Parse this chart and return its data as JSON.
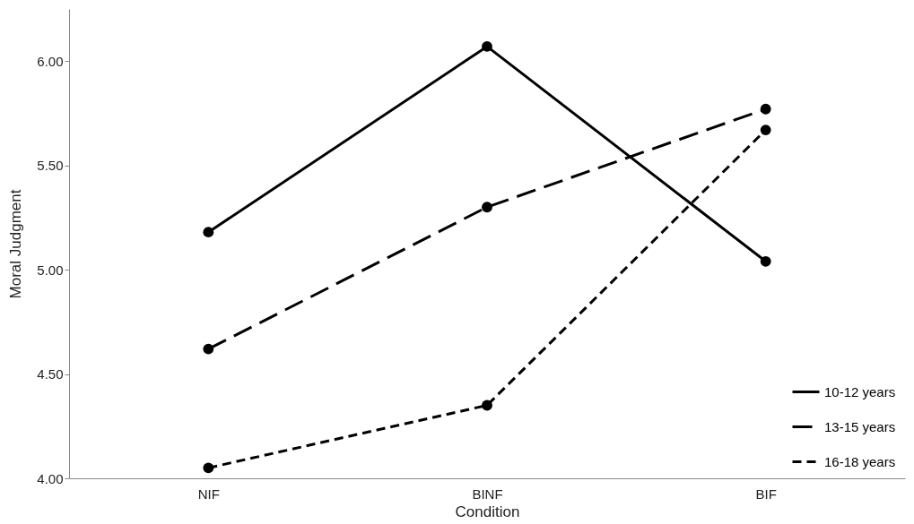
{
  "chart_data": {
    "type": "line",
    "xlabel": "Condition",
    "ylabel": "Moral Judgment",
    "categories": [
      "NIF",
      "BINF",
      "BIF"
    ],
    "series": [
      {
        "name": "10-12 years",
        "color": "#000000",
        "line_style": "solid",
        "values": [
          5.18,
          6.07,
          5.04
        ]
      },
      {
        "name": "13-15 years",
        "color": "#000000",
        "line_style": "dashed",
        "values": [
          4.62,
          5.3,
          5.77
        ]
      },
      {
        "name": "16-18 years",
        "color": "#000000",
        "line_style": "dotted",
        "values": [
          4.05,
          4.35,
          5.67
        ]
      }
    ],
    "ylim": [
      4,
      6.25
    ],
    "yticks": [
      {
        "value": 4,
        "label": "4.00"
      },
      {
        "value": 4.5,
        "label": "4.50"
      },
      {
        "value": 5,
        "label": "5.00"
      },
      {
        "value": 5.5,
        "label": "5.50"
      },
      {
        "value": 6,
        "label": "6.00"
      }
    ],
    "grid": false,
    "legend": "bottom right",
    "marker": "circle"
  }
}
